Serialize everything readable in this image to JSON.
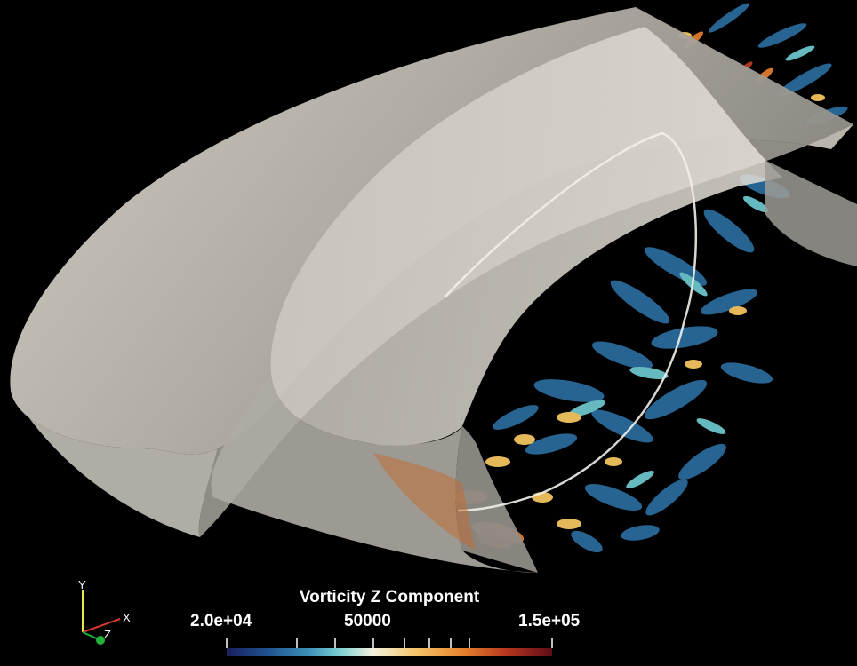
{
  "colorbar": {
    "title": "Vorticity Z Component",
    "labels": {
      "min": "2.0e+04",
      "mid": "50000",
      "max": "1.5e+05"
    }
  },
  "orientation_axes": {
    "x": "X",
    "y": "Y",
    "z": "Z"
  }
}
